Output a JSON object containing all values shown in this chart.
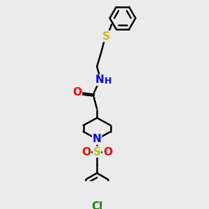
{
  "background_color": "#ebebeb",
  "figsize": [
    3.0,
    3.0
  ],
  "dpi": 100,
  "atom_colors": {
    "O": "#ff0000",
    "N": "#0000ff",
    "S_top": "#ccbb00",
    "S_so2": "#ccbb00",
    "Cl": "#008800",
    "C": "#000000"
  },
  "bond_color": "#000000",
  "bond_width": 1.8,
  "font_size": 10,
  "xlim": [
    0,
    10
  ],
  "ylim": [
    0,
    12
  ]
}
